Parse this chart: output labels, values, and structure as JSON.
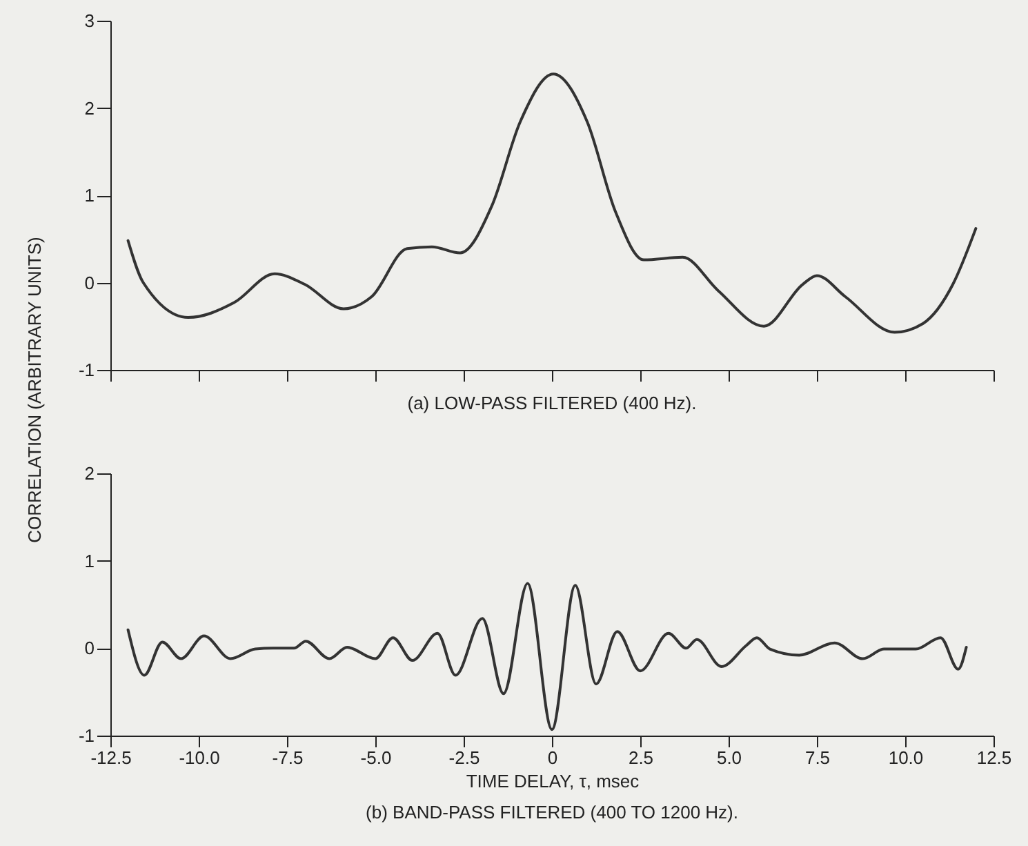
{
  "chart_data": [
    {
      "type": "line",
      "title": "(a) LOW-PASS FILTERED (400 Hz).",
      "x": [
        -12.0,
        -11.57,
        -10.3,
        -9.0,
        -7.85,
        -7.0,
        -5.9,
        -5.1,
        -4.1,
        -3.4,
        -2.6,
        -1.7,
        -0.9,
        0.04,
        1.0,
        1.8,
        2.6,
        3.7,
        4.7,
        6.0,
        7.1,
        7.5,
        8.3,
        9.7,
        10.5,
        11.35,
        12.0
      ],
      "series": [
        {
          "color": "#333333",
          "values": [
            0.48,
            0,
            -0.4,
            -0.23,
            0.1,
            -0.02,
            -0.3,
            -0.16,
            0.39,
            0.41,
            0.34,
            0.88,
            1.84,
            2.39,
            1.84,
            0.81,
            0.26,
            0.29,
            -0.09,
            -0.5,
            -0.02,
            0.08,
            -0.16,
            -0.57,
            -0.47,
            -0.02,
            0.62
          ]
        }
      ],
      "xlim": [
        -12.5,
        12.5
      ],
      "ylim": [
        -1,
        3
      ],
      "xticks": [
        -12.5,
        -10,
        -7.5,
        -5,
        -2.5,
        0,
        2.5,
        5,
        7.5,
        10,
        12.5
      ],
      "yticks": [
        -1,
        0,
        1,
        2,
        3
      ],
      "tick_labels": "y"
    },
    {
      "type": "line",
      "title": "(b) BAND-PASS FILTERED (400 TO 1200 Hz).",
      "xlabel": "TIME DELAY, τ, msec",
      "ylabel": "CORRELATION (ARBITRARY UNITS)",
      "x": [
        -12.0,
        -11.54,
        -11.03,
        -10.5,
        -9.85,
        -9.1,
        -8.4,
        -7.9,
        -7.3,
        -6.97,
        -6.3,
        -5.8,
        -5.0,
        -4.5,
        -3.95,
        -3.24,
        -2.73,
        -1.97,
        -1.37,
        -0.69,
        0,
        0.66,
        1.25,
        1.85,
        2.5,
        3.3,
        3.8,
        4.1,
        4.8,
        5.5,
        5.8,
        6.17,
        7.0,
        8.0,
        8.8,
        9.4,
        10.3,
        11.0,
        11.5,
        11.73
      ],
      "series": [
        {
          "color": "#333333",
          "values": [
            0.21,
            -0.31,
            0.07,
            -0.12,
            0.14,
            -0.12,
            -0.01,
            0,
            0,
            0.08,
            -0.12,
            0.01,
            -0.12,
            0.12,
            -0.14,
            0.17,
            -0.31,
            0.34,
            -0.52,
            0.74,
            -0.93,
            0.72,
            -0.41,
            0.19,
            -0.26,
            0.17,
            0,
            0.1,
            -0.21,
            0.03,
            0.12,
            -0.01,
            -0.08,
            0.06,
            -0.12,
            -0.01,
            -0.01,
            0.12,
            -0.24,
            0.01
          ]
        }
      ],
      "xlim": [
        -12.5,
        12.5
      ],
      "ylim": [
        -1,
        2
      ],
      "xticks": [
        -12.5,
        {
          "value": -10,
          "label": "-10.0"
        },
        -7.5,
        {
          "value": -5,
          "label": "-5.0"
        },
        -2.5,
        0,
        2.5,
        {
          "value": 5,
          "label": "5.0"
        },
        7.5,
        {
          "value": 10,
          "label": "10.0"
        },
        12.5
      ],
      "yticks": [
        -1,
        0,
        1,
        2
      ]
    }
  ]
}
